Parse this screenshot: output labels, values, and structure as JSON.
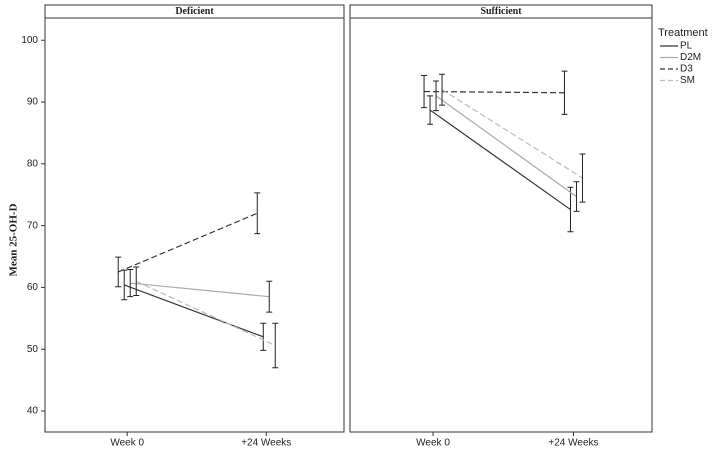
{
  "chart_data": {
    "type": "line",
    "y_label": "Mean 25-OH-D",
    "legend_title": "Treatment",
    "categories": [
      "Week 0",
      "+24 Weeks"
    ],
    "ylim": [
      36.6,
      103.6
    ],
    "yticks": [
      40,
      50,
      60,
      70,
      80,
      90,
      100
    ],
    "series": [
      {
        "name": "PL",
        "color": "#333333",
        "dashed": false
      },
      {
        "name": "D2M",
        "color": "#aaaaaa",
        "dashed": false
      },
      {
        "name": "D3",
        "color": "#333333",
        "dashed": true
      },
      {
        "name": "SM",
        "color": "#bbbbbb",
        "dashed": true
      }
    ],
    "panels": [
      {
        "title": "Deficient",
        "values": [
          [
            60.4,
            52.0
          ],
          [
            60.7,
            58.5
          ],
          [
            62.5,
            72.0
          ],
          [
            61.0,
            50.6
          ]
        ],
        "errors": [
          [
            2.4,
            2.2
          ],
          [
            2.2,
            2.5
          ],
          [
            2.4,
            3.3
          ],
          [
            2.3,
            3.6
          ]
        ]
      },
      {
        "title": "Sufficient",
        "values": [
          [
            88.7,
            72.6
          ],
          [
            91.0,
            74.7
          ],
          [
            91.7,
            91.5
          ],
          [
            92.0,
            77.7
          ]
        ],
        "errors": [
          [
            2.3,
            3.6
          ],
          [
            2.4,
            2.4
          ],
          [
            2.6,
            3.5
          ],
          [
            2.5,
            3.9
          ]
        ]
      }
    ]
  }
}
